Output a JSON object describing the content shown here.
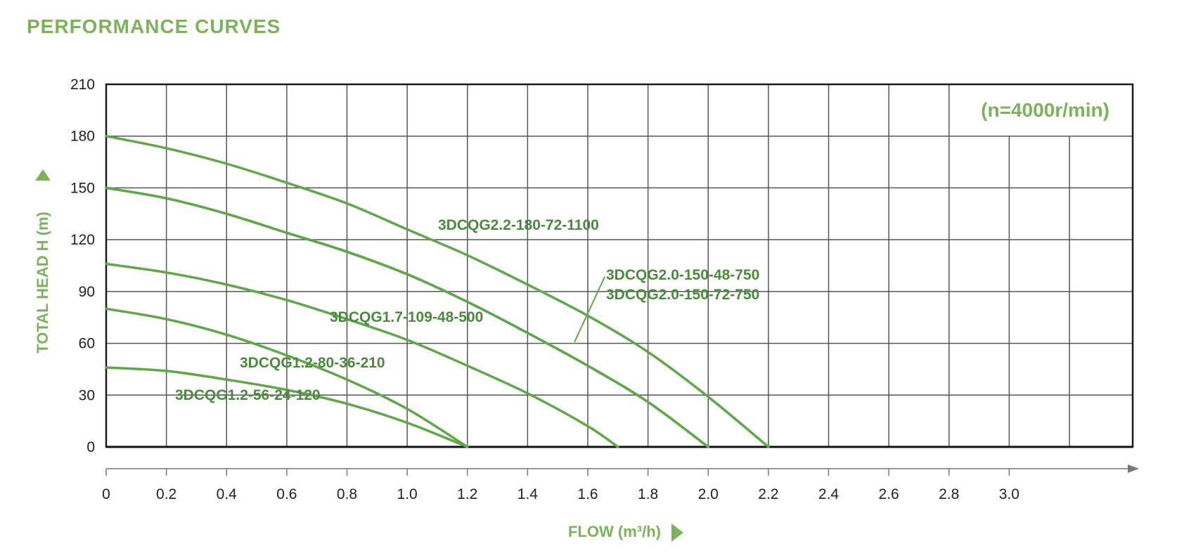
{
  "title": "PERFORMANCE  CURVES",
  "colors": {
    "accent": "#7cb35a",
    "curve": "#5fa84a",
    "curve_label": "#4a8a3c",
    "grid": "#555555"
  },
  "chart_data": {
    "type": "line",
    "title": "PERFORMANCE  CURVES",
    "xlabel": "FLOW (m³/h)",
    "ylabel": "TOTAL HEAD H (m)",
    "annotation": "(n=4000r/min)",
    "xlim": [
      0,
      3.2
    ],
    "ylim": [
      0,
      210
    ],
    "x_ticks": [
      0,
      0.2,
      0.4,
      0.6,
      0.8,
      1.0,
      1.2,
      1.4,
      1.6,
      1.8,
      2.0,
      2.2,
      2.4,
      2.6,
      2.8,
      3.0
    ],
    "x_tick_labels": [
      "0",
      "0.2",
      "0.4",
      "0.6",
      "0.8",
      "1.0",
      "1.2",
      "1.4",
      "1.6",
      "1.8",
      "2.0",
      "2.2",
      "2.4",
      "2.6",
      "2.8",
      "3.0"
    ],
    "y_ticks": [
      0,
      30,
      60,
      90,
      120,
      150,
      180,
      210
    ],
    "y_tick_labels": [
      "0",
      "30",
      "60",
      "90",
      "120",
      "150",
      "180",
      "210"
    ],
    "grid": true,
    "series": [
      {
        "name": "3DCQG2.2-180-72-1100",
        "x": [
          0,
          0.2,
          0.4,
          0.6,
          0.8,
          1.0,
          1.2,
          1.4,
          1.6,
          1.8,
          2.0,
          2.2
        ],
        "y": [
          180,
          173,
          164,
          153,
          141,
          126,
          111,
          94,
          76,
          55,
          29,
          0
        ]
      },
      {
        "name": "3DCQG2.0-150-48-750",
        "x": [
          0,
          0.2,
          0.4,
          0.6,
          0.8,
          1.0,
          1.2,
          1.4,
          1.6,
          1.8,
          2.0
        ],
        "y": [
          150,
          144,
          135,
          124,
          113,
          100,
          84,
          66,
          47,
          26,
          0
        ]
      },
      {
        "name": "3DCQG2.0-150-72-750",
        "x": [
          0,
          0.2,
          0.4,
          0.6,
          0.8,
          1.0,
          1.2,
          1.4,
          1.6,
          1.8,
          2.0
        ],
        "y": [
          150,
          144,
          135,
          124,
          113,
          100,
          84,
          66,
          47,
          26,
          0
        ]
      },
      {
        "name": "3DCQG1.7-109-48-500",
        "x": [
          0,
          0.2,
          0.4,
          0.6,
          0.8,
          1.0,
          1.2,
          1.4,
          1.6,
          1.7
        ],
        "y": [
          106,
          101,
          94,
          85,
          74,
          62,
          47,
          31,
          12,
          0
        ]
      },
      {
        "name": "3DCQG1.2-80-36-210",
        "x": [
          0,
          0.2,
          0.4,
          0.6,
          0.8,
          1.0,
          1.2
        ],
        "y": [
          80,
          74,
          65,
          53,
          39,
          22,
          0
        ]
      },
      {
        "name": "3DCQG1.2-56-24-120",
        "x": [
          0,
          0.2,
          0.4,
          0.6,
          0.8,
          1.0,
          1.2
        ],
        "y": [
          46,
          44,
          39,
          33,
          25,
          14,
          0
        ]
      }
    ]
  }
}
